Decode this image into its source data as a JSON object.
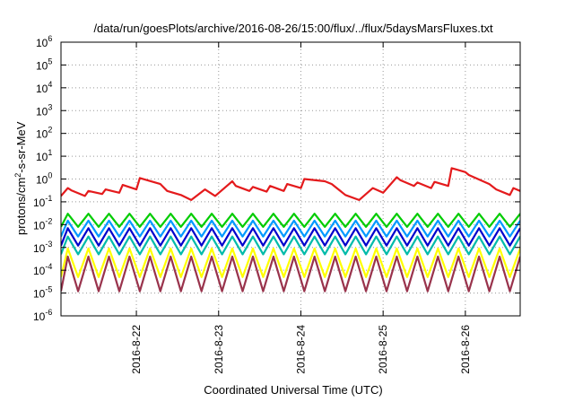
{
  "chart_data": {
    "type": "line",
    "title": "/data/run/goesPlots/archive/2016-08-26/15:00/flux/../flux/5daysMarsFluxes.txt",
    "xlabel": "Coordinated Universal Time (UTC)",
    "ylabel_prefix": "protons/cm",
    "ylabel_sup": "2",
    "ylabel_suffix": "-s-sr-MeV",
    "y_scale": "log",
    "ylim": [
      1e-06,
      1000000.0
    ],
    "xlim": [
      "2016-08-21 02:00",
      "2016-08-26 16:00"
    ],
    "grid": true,
    "legend": "none",
    "x_ticks": [
      "2016-8-22",
      "2016-8-23",
      "2016-8-24",
      "2016-8-25",
      "2016-8-26"
    ],
    "y_ticks": [
      {
        "base": "10",
        "exp": "6"
      },
      {
        "base": "10",
        "exp": "5"
      },
      {
        "base": "10",
        "exp": "4"
      },
      {
        "base": "10",
        "exp": "3"
      },
      {
        "base": "10",
        "exp": "2"
      },
      {
        "base": "10",
        "exp": "1"
      },
      {
        "base": "10",
        "exp": "0"
      },
      {
        "base": "10",
        "exp": "-1"
      },
      {
        "base": "10",
        "exp": "-2"
      },
      {
        "base": "10",
        "exp": "-3"
      },
      {
        "base": "10",
        "exp": "-4"
      },
      {
        "base": "10",
        "exp": "-5"
      },
      {
        "base": "10",
        "exp": "-6"
      }
    ],
    "series": [
      {
        "color": "#e41a1c",
        "x": [
          "2016-08-21 02:00",
          "2016-08-21 04:00",
          "2016-08-21 05:00",
          "2016-08-21 09:00",
          "2016-08-21 10:00",
          "2016-08-21 14:00",
          "2016-08-21 15:00",
          "2016-08-21 19:00",
          "2016-08-21 20:00",
          "2016-08-22 00:00",
          "2016-08-22 01:00",
          "2016-08-22 07:00",
          "2016-08-22 09:00",
          "2016-08-22 13:00",
          "2016-08-22 16:00",
          "2016-08-22 20:00",
          "2016-08-22 23:00",
          "2016-08-23 04:00",
          "2016-08-23 05:00",
          "2016-08-23 09:00",
          "2016-08-23 10:00",
          "2016-08-23 14:00",
          "2016-08-23 15:00",
          "2016-08-23 19:00",
          "2016-08-23 20:00",
          "2016-08-24 00:00",
          "2016-08-24 01:00",
          "2016-08-24 07:00",
          "2016-08-24 09:00",
          "2016-08-24 13:00",
          "2016-08-24 17:00",
          "2016-08-24 21:00",
          "2016-08-25 00:00",
          "2016-08-25 04:00",
          "2016-08-25 05:00",
          "2016-08-25 09:00",
          "2016-08-25 10:00",
          "2016-08-25 14:00",
          "2016-08-25 15:00",
          "2016-08-25 19:00",
          "2016-08-25 20:00",
          "2016-08-26 00:00",
          "2016-08-26 01:00",
          "2016-08-26 07:00",
          "2016-08-26 09:00",
          "2016-08-26 13:00",
          "2016-08-26 14:00",
          "2016-08-26 16:00"
        ],
        "y": [
          0.18,
          0.4,
          0.32,
          0.18,
          0.3,
          0.22,
          0.35,
          0.25,
          0.55,
          0.35,
          1.1,
          0.6,
          0.3,
          0.2,
          0.12,
          0.35,
          0.18,
          0.8,
          0.5,
          0.3,
          0.45,
          0.28,
          0.5,
          0.3,
          0.6,
          0.4,
          1.0,
          0.8,
          0.6,
          0.2,
          0.12,
          0.4,
          0.25,
          1.2,
          0.9,
          0.5,
          0.7,
          0.4,
          0.75,
          0.5,
          3.0,
          2.0,
          1.5,
          0.6,
          0.35,
          0.2,
          0.4,
          0.3
        ]
      },
      {
        "color": "#00cc00",
        "teeth_x": [
          "2016-08-21 02:00",
          "2016-08-21 04:00",
          "2016-08-21 07:00",
          "2016-08-21 10:00",
          "2016-08-21 13:00",
          "2016-08-21 16:00",
          "2016-08-21 19:00",
          "2016-08-21 22:00",
          "2016-08-22 01:00",
          "2016-08-22 04:00",
          "2016-08-22 07:00",
          "2016-08-22 10:00",
          "2016-08-22 13:00",
          "2016-08-22 16:00",
          "2016-08-22 19:00",
          "2016-08-22 22:00",
          "2016-08-23 01:00",
          "2016-08-23 04:00",
          "2016-08-23 07:00",
          "2016-08-23 10:00",
          "2016-08-23 13:00",
          "2016-08-23 16:00",
          "2016-08-23 19:00",
          "2016-08-23 22:00",
          "2016-08-24 01:00",
          "2016-08-24 04:00",
          "2016-08-24 07:00",
          "2016-08-24 10:00",
          "2016-08-24 13:00",
          "2016-08-24 16:00",
          "2016-08-24 19:00",
          "2016-08-24 22:00",
          "2016-08-25 01:00",
          "2016-08-25 04:00",
          "2016-08-25 07:00",
          "2016-08-25 10:00",
          "2016-08-25 13:00",
          "2016-08-25 16:00",
          "2016-08-25 19:00",
          "2016-08-25 22:00",
          "2016-08-26 01:00",
          "2016-08-26 04:00",
          "2016-08-26 07:00",
          "2016-08-26 10:00",
          "2016-08-26 13:00",
          "2016-08-26 16:00"
        ],
        "high": 0.03,
        "low": 0.008
      },
      {
        "color": "#0099ff",
        "high": 0.015,
        "low": 0.003
      },
      {
        "color": "#0000cc",
        "high": 0.007,
        "low": 0.0012
      },
      {
        "color": "#00bbaa",
        "high": 0.003,
        "low": 0.0005
      },
      {
        "color": "#ffff00",
        "high": 0.0009,
        "low": 5e-05
      },
      {
        "color": "#99334c",
        "high": 0.0004,
        "low": 1.2e-05
      }
    ]
  }
}
